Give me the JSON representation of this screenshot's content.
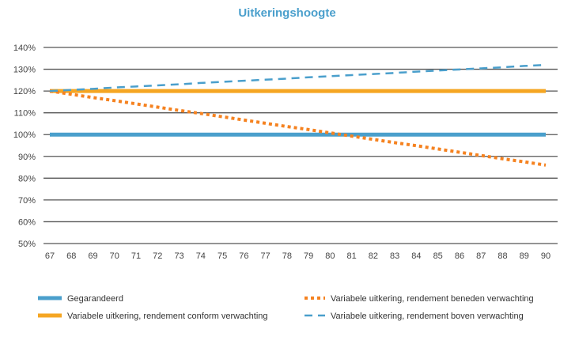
{
  "chart_data": {
    "type": "line",
    "title": "Uitkeringshoogte",
    "xlabel": "",
    "ylabel": "",
    "x": [
      67,
      68,
      69,
      70,
      71,
      72,
      73,
      74,
      75,
      76,
      77,
      78,
      79,
      80,
      81,
      82,
      83,
      84,
      85,
      86,
      87,
      88,
      89,
      90
    ],
    "x_tick_labels": [
      "67",
      "68",
      "69",
      "70",
      "71",
      "72",
      "73",
      "74",
      "75",
      "76",
      "77",
      "78",
      "79",
      "80",
      "81",
      "82",
      "83",
      "84",
      "85",
      "86",
      "87",
      "88",
      "89",
      "90"
    ],
    "ylim": [
      50,
      140
    ],
    "y_ticks": [
      50,
      60,
      70,
      80,
      90,
      100,
      110,
      120,
      130,
      140
    ],
    "y_tick_labels": [
      "50%",
      "60%",
      "70%",
      "80%",
      "90%",
      "100%",
      "110%",
      "120%",
      "130%",
      "140%"
    ],
    "grid": true,
    "legend_position": "bottom",
    "series": [
      {
        "name": "Gegarandeerd",
        "color": "#4a9fcc",
        "style": "solid",
        "values": [
          100,
          100,
          100,
          100,
          100,
          100,
          100,
          100,
          100,
          100,
          100,
          100,
          100,
          100,
          100,
          100,
          100,
          100,
          100,
          100,
          100,
          100,
          100,
          100
        ]
      },
      {
        "name": "Variabele uitkering, rendement conform verwachting",
        "color": "#f5a623",
        "style": "solid",
        "values": [
          120,
          120,
          120,
          120,
          120,
          120,
          120,
          120,
          120,
          120,
          120,
          120,
          120,
          120,
          120,
          120,
          120,
          120,
          120,
          120,
          120,
          120,
          120,
          120
        ]
      },
      {
        "name": "Variabele uitkering, rendement beneden verwachting",
        "color": "#f58220",
        "style": "dotted",
        "values": [
          120,
          118.5,
          117.0,
          115.6,
          114.1,
          112.6,
          111.1,
          109.7,
          108.2,
          106.7,
          105.2,
          103.7,
          102.3,
          100.8,
          99.3,
          97.8,
          96.3,
          94.9,
          93.4,
          91.9,
          90.4,
          88.9,
          87.5,
          86.0
        ]
      },
      {
        "name": "Variabele uitkering, rendement boven verwachting",
        "color": "#4a9fcc",
        "style": "dashed",
        "values": [
          120,
          120.5,
          121.0,
          121.6,
          122.1,
          122.6,
          123.1,
          123.7,
          124.2,
          124.7,
          125.2,
          125.7,
          126.3,
          126.8,
          127.3,
          127.8,
          128.3,
          128.9,
          129.4,
          129.9,
          130.4,
          130.9,
          131.5,
          132.0
        ]
      }
    ]
  },
  "title_color": "#4a9fcc"
}
